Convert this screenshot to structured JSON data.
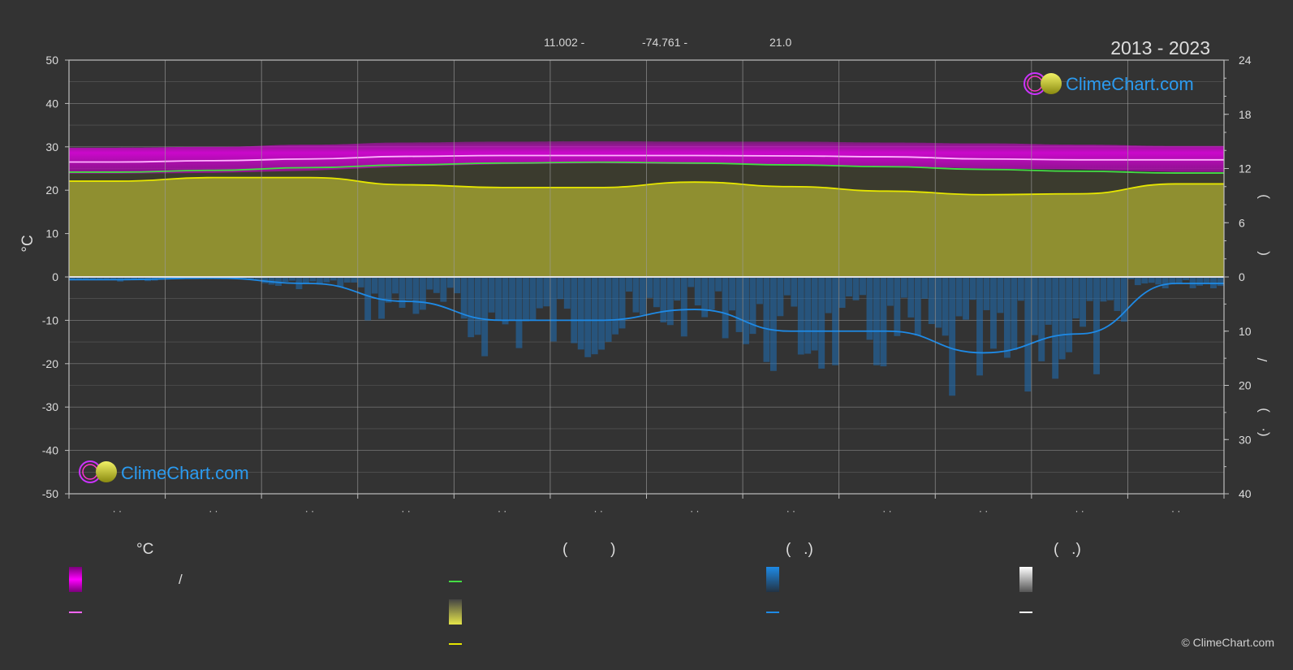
{
  "header": {
    "lat": "11.002 -",
    "lon": "-74.761 -",
    "elev": "21.0",
    "period": "2013 - 2023"
  },
  "axes": {
    "left_unit": "°C",
    "left_ticks": [
      "50",
      "40",
      "30",
      "20",
      "10",
      "0",
      "-10",
      "-20",
      "-30",
      "-40",
      "-50"
    ],
    "right_upper_ticks": [
      "24",
      "18",
      "12",
      "6",
      "0"
    ],
    "right_lower_ticks": [
      "10",
      "20",
      "30",
      "40"
    ],
    "right_upper_marks": [
      ")",
      "("
    ],
    "right_lower_marks": [
      "/",
      ")",
      "(·"
    ],
    "month_labels": [
      "· ·",
      "· ·",
      "· ·",
      "· ·",
      "· ·",
      "· ·",
      "· ·",
      "· ·",
      "· ·",
      "· ·",
      "· ·",
      "· ·"
    ]
  },
  "logo": {
    "text": "ClimeChart.com"
  },
  "legend": {
    "col1_head": "°C",
    "col1_range_sep": "/",
    "col2_head": "(          )",
    "col3_head": "(   .)",
    "col4_head": "(   .)",
    "colors": {
      "temp_range": "#e600e6",
      "temp_mean": "#ff66ff",
      "daylight": "#44dd44",
      "sunshine": "#e6e64a",
      "sunshine_mean": "#e6e600",
      "precip": "#1e8ae6",
      "precip_mean": "#1e8ae6",
      "snow": "#ffffff"
    }
  },
  "copyright": "© ClimeChart.com",
  "chart_data": {
    "type": "area",
    "title": "",
    "period": "2013 - 2023",
    "x": [
      "1",
      "2",
      "3",
      "4",
      "5",
      "6",
      "7",
      "8",
      "9",
      "10",
      "11",
      "12"
    ],
    "ylim_temp": [
      -50,
      50
    ],
    "ylim_hours": [
      0,
      24
    ],
    "ylim_precip_mm": [
      0,
      40
    ],
    "grid": true,
    "series": [
      {
        "axis": "temp",
        "kind": "band",
        "high": [
          29.8,
          30.0,
          30.5,
          31.0,
          31.2,
          31.3,
          31.2,
          31.2,
          31.0,
          30.8,
          30.5,
          30.2
        ],
        "low": [
          23.8,
          24.0,
          24.5,
          25.5,
          26.0,
          26.2,
          26.0,
          26.0,
          25.5,
          25.0,
          24.8,
          24.2
        ]
      },
      {
        "axis": "temp",
        "kind": "line",
        "values": [
          26.5,
          26.8,
          27.2,
          27.8,
          28.0,
          28.0,
          28.0,
          27.9,
          27.7,
          27.2,
          27.0,
          27.0
        ]
      },
      {
        "axis": "hours",
        "kind": "line",
        "values": [
          11.6,
          11.8,
          12.1,
          12.4,
          12.6,
          12.7,
          12.6,
          12.4,
          12.2,
          11.9,
          11.7,
          11.5
        ]
      },
      {
        "axis": "hours",
        "kind": "area",
        "values": [
          10.6,
          11.0,
          11.0,
          10.2,
          9.9,
          9.9,
          10.5,
          10.0,
          9.5,
          9.1,
          9.2,
          10.3
        ]
      },
      {
        "axis": "precip",
        "kind": "line",
        "values": [
          0.5,
          0.2,
          1.2,
          4.5,
          8.0,
          8.0,
          6.0,
          10.0,
          10.0,
          14.0,
          10.5,
          1.2
        ]
      }
    ]
  }
}
